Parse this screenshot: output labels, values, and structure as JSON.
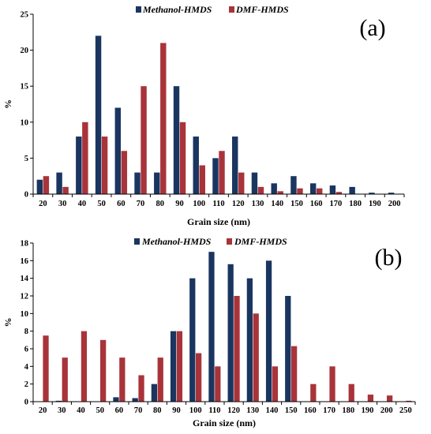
{
  "chart_data": [
    {
      "type": "bar",
      "panel_label": "(a)",
      "categories": [
        "20",
        "30",
        "40",
        "50",
        "60",
        "70",
        "80",
        "90",
        "100",
        "110",
        "120",
        "130",
        "140",
        "150",
        "160",
        "170",
        "180",
        "190",
        "200"
      ],
      "series": [
        {
          "name": "Methanol-HMDS",
          "color": "#1a3560",
          "values": [
            2,
            3,
            8,
            22,
            12,
            3,
            3,
            15,
            8,
            5,
            8,
            3,
            1.5,
            2.5,
            1.5,
            1.2,
            1,
            0.2,
            0.2
          ]
        },
        {
          "name": "DMF-HMDS",
          "color": "#a8343a",
          "values": [
            2.5,
            1,
            10,
            8,
            6,
            15,
            21,
            10,
            4,
            6,
            3,
            1,
            0.4,
            0.8,
            0.8,
            0.3,
            0,
            0,
            0
          ]
        }
      ],
      "xlabel": "Grain size (nm)",
      "ylabel": "%",
      "ylim": [
        0,
        25
      ],
      "yticks": [
        0,
        5,
        10,
        15,
        20,
        25
      ],
      "grid": false,
      "legend": "top-center"
    },
    {
      "type": "bar",
      "panel_label": "(b)",
      "categories": [
        "20",
        "30",
        "40",
        "50",
        "60",
        "70",
        "80",
        "90",
        "100",
        "110",
        "120",
        "130",
        "140",
        "150",
        "160",
        "170",
        "180",
        "190",
        "200",
        "250"
      ],
      "series": [
        {
          "name": "Methanol-HMDS",
          "color": "#1a3560",
          "values": [
            0,
            0.1,
            0,
            0,
            0.5,
            0.4,
            2,
            8,
            14,
            17,
            15.6,
            14,
            16,
            12,
            0,
            0,
            0,
            0,
            0,
            0
          ]
        },
        {
          "name": "DMF-HMDS",
          "color": "#a8343a",
          "values": [
            7.5,
            5,
            8,
            7,
            5,
            3,
            5,
            8,
            5.5,
            4,
            12,
            10,
            4,
            6.3,
            2,
            4,
            2,
            0.8,
            0.7,
            0.1
          ]
        }
      ],
      "xlabel": "Grain size (nm)",
      "ylabel": "%",
      "ylim": [
        0,
        18
      ],
      "yticks": [
        0,
        2,
        4,
        6,
        8,
        10,
        12,
        14,
        16,
        18
      ],
      "grid": false,
      "legend": "top-center"
    }
  ]
}
